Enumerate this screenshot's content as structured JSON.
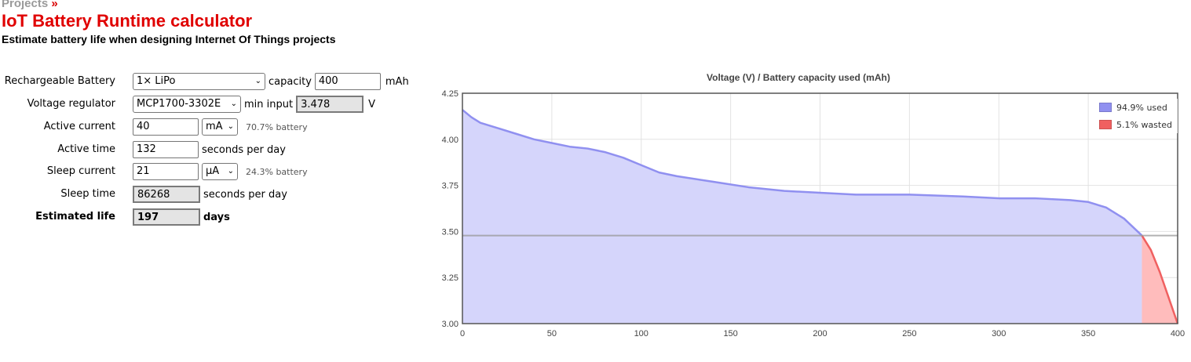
{
  "breadcrumb": {
    "label": "Projects",
    "separator": "»"
  },
  "header": {
    "title": "IoT Battery Runtime calculator",
    "subtitle": "Estimate battery life when designing Internet Of Things projects"
  },
  "form": {
    "battery": {
      "label": "Rechargeable Battery",
      "selected": "1× LiPo",
      "capacity_label": "capacity",
      "capacity_value": "400",
      "capacity_unit": "mAh"
    },
    "regulator": {
      "label": "Voltage regulator",
      "selected": "MCP1700-3302E",
      "min_input_label": "min input",
      "min_input_value": "3.478",
      "min_input_unit": "V"
    },
    "active_current": {
      "label": "Active current",
      "value": "40",
      "unit": "mA",
      "note": "70.7% battery"
    },
    "active_time": {
      "label": "Active time",
      "value": "132",
      "unit": "seconds per day"
    },
    "sleep_current": {
      "label": "Sleep current",
      "value": "21",
      "unit": "µA",
      "note": "24.3% battery"
    },
    "sleep_time": {
      "label": "Sleep time",
      "value": "86268",
      "unit": "seconds per day"
    },
    "estimated_life": {
      "label": "Estimated life",
      "value": "197",
      "unit": "days"
    }
  },
  "colors": {
    "title_red": "#e00000",
    "used_fill": "#d5d5fb",
    "used_line": "#9090f0",
    "wasted_fill": "#ffbcbc",
    "wasted_line": "#f06060"
  },
  "chart_data": {
    "type": "area",
    "title": "Voltage (V) / Battery capacity used (mAh)",
    "xlim": [
      0,
      400
    ],
    "ylim": [
      3.0,
      4.25
    ],
    "x_ticks": [
      "0",
      "50",
      "100",
      "150",
      "200",
      "250",
      "300",
      "350",
      "400"
    ],
    "y_ticks": [
      "3.00",
      "3.25",
      "3.50",
      "3.75",
      "4.00",
      "4.25"
    ],
    "grid": true,
    "legend_position": "top-right",
    "threshold_voltage": 3.478,
    "cutoff_capacity": 380,
    "series": [
      {
        "name": "94.9% used",
        "color": "#9090f0",
        "x": [
          0,
          5,
          10,
          20,
          30,
          40,
          50,
          60,
          70,
          80,
          90,
          100,
          110,
          120,
          140,
          160,
          180,
          200,
          220,
          250,
          280,
          300,
          320,
          340,
          350,
          360,
          370,
          380
        ],
        "y": [
          4.16,
          4.12,
          4.09,
          4.06,
          4.03,
          4.0,
          3.98,
          3.96,
          3.95,
          3.93,
          3.9,
          3.86,
          3.82,
          3.8,
          3.77,
          3.74,
          3.72,
          3.71,
          3.7,
          3.7,
          3.69,
          3.68,
          3.68,
          3.67,
          3.66,
          3.63,
          3.57,
          3.478
        ]
      },
      {
        "name": "5.1% wasted",
        "color": "#f06060",
        "x": [
          380,
          385,
          390,
          395,
          400
        ],
        "y": [
          3.478,
          3.4,
          3.28,
          3.14,
          3.0
        ]
      }
    ]
  }
}
